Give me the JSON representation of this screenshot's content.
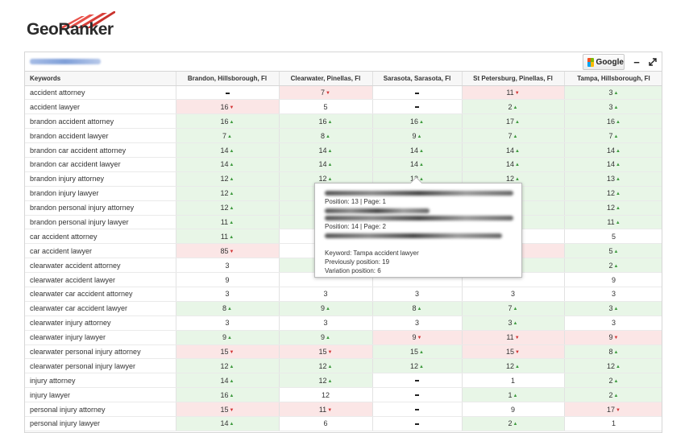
{
  "brand": {
    "name": "GeoRanker"
  },
  "header": {
    "engine_label": "Google",
    "minimize_icon": "minimize-icon",
    "expand_icon": "expand-icon"
  },
  "columns": [
    "Keywords",
    "Brandon, Hillsborough, Fl",
    "Clearwater, Pinellas, Fl",
    "Sarasota, Sarasota, Fl",
    "St Petersburg, Pinellas, Fl",
    "Tampa, Hillsborough, Fl"
  ],
  "colors": {
    "up_bg": "#e8f6e7",
    "down_bg": "#fbe6e6",
    "up_arrow": "#3e9a3e",
    "down_arrow": "#d23434"
  },
  "rows": [
    {
      "keyword": "accident attorney",
      "cells": [
        [
          "-",
          "none"
        ],
        [
          "7",
          "down"
        ],
        [
          "-",
          "none"
        ],
        [
          "11",
          "down"
        ],
        [
          "3",
          "up"
        ]
      ]
    },
    {
      "keyword": "accident lawyer",
      "cells": [
        [
          "16",
          "down"
        ],
        [
          "5",
          "none"
        ],
        [
          "-",
          "none"
        ],
        [
          "2",
          "up"
        ],
        [
          "3",
          "up"
        ]
      ]
    },
    {
      "keyword": "brandon accident attorney",
      "cells": [
        [
          "16",
          "up"
        ],
        [
          "16",
          "up"
        ],
        [
          "16",
          "up"
        ],
        [
          "17",
          "up"
        ],
        [
          "16",
          "up"
        ]
      ]
    },
    {
      "keyword": "brandon accident lawyer",
      "cells": [
        [
          "7",
          "up"
        ],
        [
          "8",
          "up"
        ],
        [
          "9",
          "up"
        ],
        [
          "7",
          "up"
        ],
        [
          "7",
          "up"
        ]
      ]
    },
    {
      "keyword": "brandon car accident attorney",
      "cells": [
        [
          "14",
          "up"
        ],
        [
          "14",
          "up"
        ],
        [
          "14",
          "up"
        ],
        [
          "14",
          "up"
        ],
        [
          "14",
          "up"
        ]
      ]
    },
    {
      "keyword": "brandon car accident lawyer",
      "cells": [
        [
          "14",
          "up"
        ],
        [
          "14",
          "up"
        ],
        [
          "14",
          "up"
        ],
        [
          "14",
          "up"
        ],
        [
          "14",
          "up"
        ]
      ]
    },
    {
      "keyword": "brandon injury attorney",
      "cells": [
        [
          "12",
          "up"
        ],
        [
          "12",
          "up"
        ],
        [
          "13",
          "up"
        ],
        [
          "12",
          "up"
        ],
        [
          "13",
          "up"
        ]
      ]
    },
    {
      "keyword": "brandon injury lawyer",
      "cells": [
        [
          "12",
          "up"
        ],
        [
          "",
          "up"
        ],
        [
          "",
          "up"
        ],
        [
          "",
          "up"
        ],
        [
          "12",
          "up"
        ]
      ]
    },
    {
      "keyword": "brandon personal injury attorney",
      "cells": [
        [
          "12",
          "up"
        ],
        [
          "",
          "up"
        ],
        [
          "",
          "up"
        ],
        [
          "",
          "up"
        ],
        [
          "12",
          "up"
        ]
      ]
    },
    {
      "keyword": "brandon personal injury lawyer",
      "cells": [
        [
          "11",
          "up"
        ],
        [
          "",
          "up"
        ],
        [
          "",
          "up"
        ],
        [
          "",
          "up"
        ],
        [
          "11",
          "up"
        ]
      ]
    },
    {
      "keyword": "car accident attorney",
      "cells": [
        [
          "11",
          "up"
        ],
        [
          "",
          "none"
        ],
        [
          "",
          "none"
        ],
        [
          "",
          "none"
        ],
        [
          "5",
          "none"
        ]
      ]
    },
    {
      "keyword": "car accident lawyer",
      "cells": [
        [
          "85",
          "down"
        ],
        [
          "",
          "none"
        ],
        [
          "",
          "none"
        ],
        [
          "",
          "down"
        ],
        [
          "5",
          "up"
        ]
      ]
    },
    {
      "keyword": "clearwater accident attorney",
      "cells": [
        [
          "3",
          "none"
        ],
        [
          "",
          "up"
        ],
        [
          "",
          "up"
        ],
        [
          "",
          "up"
        ],
        [
          "2",
          "up"
        ]
      ]
    },
    {
      "keyword": "clearwater accident lawyer",
      "cells": [
        [
          "9",
          "none"
        ],
        [
          "",
          "none"
        ],
        [
          "",
          "none"
        ],
        [
          "",
          "none"
        ],
        [
          "9",
          "none"
        ]
      ]
    },
    {
      "keyword": "clearwater car accident attorney",
      "cells": [
        [
          "3",
          "none"
        ],
        [
          "3",
          "none"
        ],
        [
          "3",
          "none"
        ],
        [
          "3",
          "none"
        ],
        [
          "3",
          "none"
        ]
      ]
    },
    {
      "keyword": "clearwater car accident lawyer",
      "cells": [
        [
          "8",
          "up"
        ],
        [
          "9",
          "up"
        ],
        [
          "8",
          "up"
        ],
        [
          "7",
          "up"
        ],
        [
          "3",
          "up"
        ]
      ]
    },
    {
      "keyword": "clearwater injury attorney",
      "cells": [
        [
          "3",
          "none"
        ],
        [
          "3",
          "none"
        ],
        [
          "3",
          "none"
        ],
        [
          "3",
          "up"
        ],
        [
          "3",
          "none"
        ]
      ]
    },
    {
      "keyword": "clearwater injury lawyer",
      "cells": [
        [
          "9",
          "up"
        ],
        [
          "9",
          "up"
        ],
        [
          "9",
          "down"
        ],
        [
          "11",
          "down"
        ],
        [
          "9",
          "down"
        ]
      ]
    },
    {
      "keyword": "clearwater personal injury attorney",
      "cells": [
        [
          "15",
          "down"
        ],
        [
          "15",
          "down"
        ],
        [
          "15",
          "up"
        ],
        [
          "15",
          "down"
        ],
        [
          "8",
          "up"
        ]
      ]
    },
    {
      "keyword": "clearwater personal injury lawyer",
      "cells": [
        [
          "12",
          "up"
        ],
        [
          "12",
          "up"
        ],
        [
          "12",
          "up"
        ],
        [
          "12",
          "up"
        ],
        [
          "12",
          "up"
        ]
      ]
    },
    {
      "keyword": "injury attorney",
      "cells": [
        [
          "14",
          "up"
        ],
        [
          "12",
          "up"
        ],
        [
          "-",
          "none"
        ],
        [
          "1",
          "none"
        ],
        [
          "2",
          "up"
        ]
      ]
    },
    {
      "keyword": "injury lawyer",
      "cells": [
        [
          "16",
          "up"
        ],
        [
          "12",
          "none"
        ],
        [
          "-",
          "none"
        ],
        [
          "1",
          "up"
        ],
        [
          "2",
          "up"
        ]
      ]
    },
    {
      "keyword": "personal injury attorney",
      "cells": [
        [
          "15",
          "down"
        ],
        [
          "11",
          "down"
        ],
        [
          "-",
          "none"
        ],
        [
          "9",
          "none"
        ],
        [
          "17",
          "down"
        ]
      ]
    },
    {
      "keyword": "personal injury lawyer",
      "cells": [
        [
          "14",
          "up"
        ],
        [
          "6",
          "none"
        ],
        [
          "-",
          "none"
        ],
        [
          "2",
          "up"
        ],
        [
          "1",
          "none"
        ]
      ]
    }
  ],
  "tooltip": {
    "result1": "Position: 13 | Page: 1",
    "result2": "Position: 14 | Page: 2",
    "keyword": "Keyword: Tampa accident lawyer",
    "previous": "Previously position: 19",
    "variation": "Variation position: 6"
  }
}
